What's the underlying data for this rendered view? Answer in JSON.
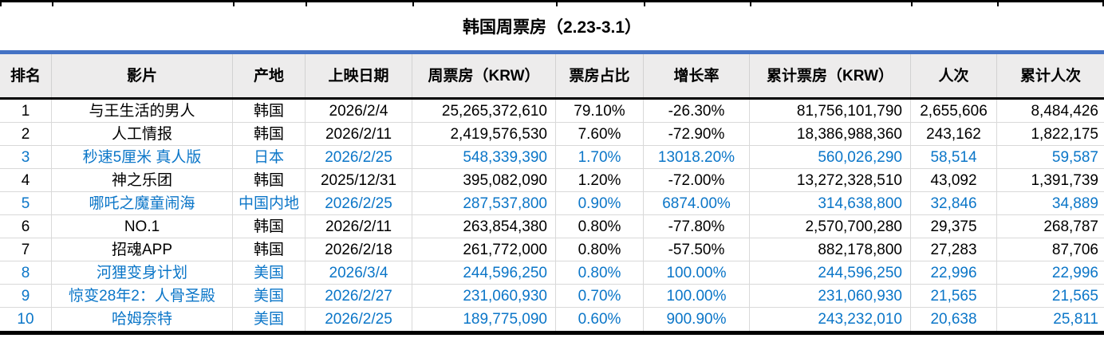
{
  "title": "韩国周票房（2.23-3.1）",
  "colors": {
    "accent_bar": "#4472C4",
    "highlight_text": "#0B76C8",
    "header_bg": "#EDECEC",
    "grid_line": "#D9D9D9"
  },
  "table": {
    "columns": [
      {
        "key": "rank",
        "label": "排名"
      },
      {
        "key": "film",
        "label": "影片"
      },
      {
        "key": "origin",
        "label": "产地"
      },
      {
        "key": "release_date",
        "label": "上映日期"
      },
      {
        "key": "weekly_gross",
        "label": "周票房（KRW）"
      },
      {
        "key": "share",
        "label": "票房占比"
      },
      {
        "key": "growth",
        "label": "增长率"
      },
      {
        "key": "cumulative_gross",
        "label": "累计票房（KRW）"
      },
      {
        "key": "admissions",
        "label": "人次"
      },
      {
        "key": "cumulative_admissions",
        "label": "累计人次"
      }
    ],
    "rows": [
      {
        "rank": "1",
        "film": "与王生活的男人",
        "origin": "韩国",
        "release_date": "2026/2/4",
        "weekly_gross": "25,265,372,610",
        "share": "79.10%",
        "growth": "-26.30%",
        "cumulative_gross": "81,756,101,790",
        "admissions": "2,655,606",
        "cumulative_admissions": "8,484,426",
        "highlight": false
      },
      {
        "rank": "2",
        "film": "人工情报",
        "origin": "韩国",
        "release_date": "2026/2/11",
        "weekly_gross": "2,419,576,530",
        "share": "7.60%",
        "growth": "-72.90%",
        "cumulative_gross": "18,386,988,360",
        "admissions": "243,162",
        "cumulative_admissions": "1,822,175",
        "highlight": false
      },
      {
        "rank": "3",
        "film": "秒速5厘米 真人版",
        "origin": "日本",
        "release_date": "2026/2/25",
        "weekly_gross": "548,339,390",
        "share": "1.70%",
        "growth": "13018.20%",
        "cumulative_gross": "560,026,290",
        "admissions": "58,514",
        "cumulative_admissions": "59,587",
        "highlight": true
      },
      {
        "rank": "4",
        "film": "神之乐团",
        "origin": "韩国",
        "release_date": "2025/12/31",
        "weekly_gross": "395,082,090",
        "share": "1.20%",
        "growth": "-72.00%",
        "cumulative_gross": "13,272,328,510",
        "admissions": "43,092",
        "cumulative_admissions": "1,391,739",
        "highlight": false
      },
      {
        "rank": "5",
        "film": "哪吒之魔童闹海",
        "origin": "中国内地",
        "release_date": "2026/2/25",
        "weekly_gross": "287,537,800",
        "share": "0.90%",
        "growth": "6874.00%",
        "cumulative_gross": "314,638,800",
        "admissions": "32,846",
        "cumulative_admissions": "34,889",
        "highlight": true
      },
      {
        "rank": "6",
        "film": "NO.1",
        "origin": "韩国",
        "release_date": "2026/2/11",
        "weekly_gross": "263,854,380",
        "share": "0.80%",
        "growth": "-77.80%",
        "cumulative_gross": "2,570,700,280",
        "admissions": "29,375",
        "cumulative_admissions": "268,787",
        "highlight": false
      },
      {
        "rank": "7",
        "film": "招魂APP",
        "origin": "韩国",
        "release_date": "2026/2/18",
        "weekly_gross": "261,772,000",
        "share": "0.80%",
        "growth": "-57.50%",
        "cumulative_gross": "882,178,800",
        "admissions": "27,283",
        "cumulative_admissions": "87,706",
        "highlight": false
      },
      {
        "rank": "8",
        "film": "河狸变身计划",
        "origin": "美国",
        "release_date": "2026/3/4",
        "weekly_gross": "244,596,250",
        "share": "0.80%",
        "growth": "100.00%",
        "cumulative_gross": "244,596,250",
        "admissions": "22,996",
        "cumulative_admissions": "22,996",
        "highlight": true
      },
      {
        "rank": "9",
        "film": "惊变28年2：人骨圣殿",
        "origin": "美国",
        "release_date": "2026/2/27",
        "weekly_gross": "231,060,930",
        "share": "0.70%",
        "growth": "100.00%",
        "cumulative_gross": "231,060,930",
        "admissions": "21,565",
        "cumulative_admissions": "21,565",
        "highlight": true
      },
      {
        "rank": "10",
        "film": "哈姆奈特",
        "origin": "美国",
        "release_date": "2026/2/25",
        "weekly_gross": "189,775,090",
        "share": "0.60%",
        "growth": "900.90%",
        "cumulative_gross": "243,232,010",
        "admissions": "20,638",
        "cumulative_admissions": "25,811",
        "highlight": true
      }
    ]
  }
}
